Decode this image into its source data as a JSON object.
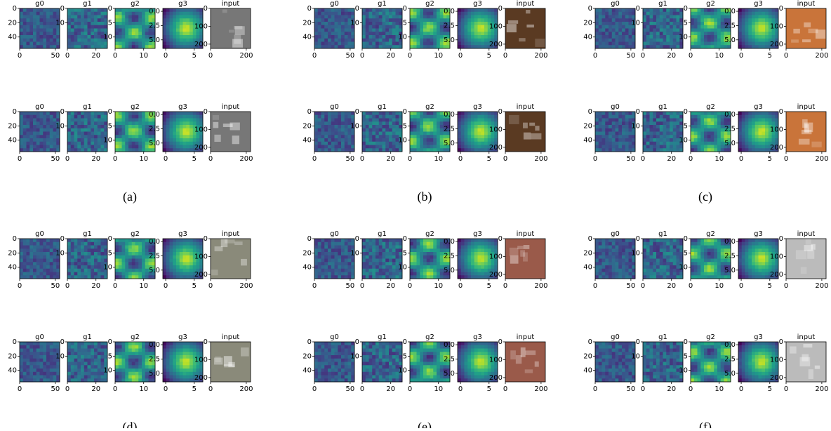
{
  "panels": [
    {
      "title": "g0",
      "xlim": [
        0,
        56
      ],
      "ylim": [
        0,
        56
      ],
      "xticks": [
        0,
        50
      ],
      "yticks": [
        0,
        20,
        40
      ]
    },
    {
      "title": "g1",
      "xlim": [
        0,
        28
      ],
      "ylim": [
        0,
        28
      ],
      "xticks": [
        0,
        20
      ],
      "yticks": [
        0,
        10
      ]
    },
    {
      "title": "g2",
      "xlim": [
        0,
        14
      ],
      "ylim": [
        0,
        14
      ],
      "xticks": [
        0,
        10
      ],
      "yticks": [
        0,
        5,
        10
      ]
    },
    {
      "title": "g3",
      "xlim": [
        -0.5,
        6.5
      ],
      "ylim": [
        -0.5,
        6.5
      ],
      "xticks": [
        0,
        5
      ],
      "yticks": [
        {
          "value": 0,
          "label": "0.0"
        },
        {
          "value": 2.5,
          "label": "2.5"
        },
        {
          "value": 5,
          "label": "5.0"
        }
      ]
    },
    {
      "title": "input",
      "xlim": [
        0,
        224
      ],
      "ylim": [
        0,
        224
      ],
      "xticks": [
        0,
        200
      ],
      "yticks": [
        0,
        100,
        200
      ]
    }
  ],
  "figures": [
    {
      "caption": "(a)"
    },
    {
      "caption": "(b)"
    },
    {
      "caption": "(c)"
    },
    {
      "caption": "(d)"
    },
    {
      "caption": "(e)"
    },
    {
      "caption": "(f)"
    }
  ]
}
